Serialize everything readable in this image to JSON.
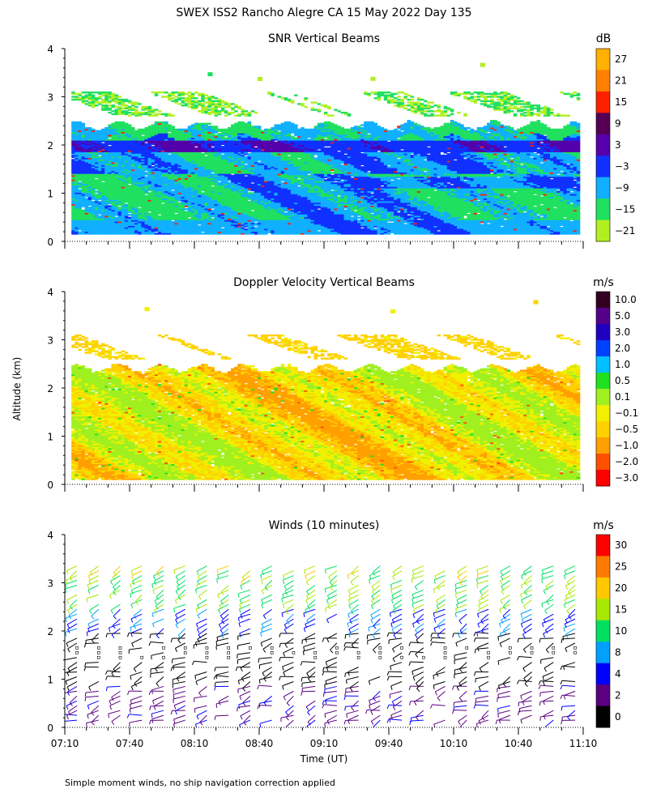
{
  "figure": {
    "title": "SWEX ISS2 Rancho Alegre CA  15 May 2022 Day 135",
    "y_axis_label": "Altitude (km)",
    "x_axis_label": "Time (UT)",
    "footnote": "Simple moment winds, no ship navigation correction applied"
  },
  "chart_data": [
    {
      "type": "heatmap",
      "title": "SNR Vertical Beams",
      "units": "dB",
      "ylim": [
        0,
        4
      ],
      "yticks": [
        "0",
        "1",
        "2",
        "3",
        "4"
      ],
      "x_range": [
        "07:10",
        "11:10"
      ],
      "colorbar_labels": [
        "27",
        "21",
        "15",
        "9",
        "3",
        "−3",
        "−9",
        "−15",
        "−21"
      ],
      "colorbar_colors": [
        "#ffb000",
        "#ff7f00",
        "#ff2000",
        "#550055",
        "#5500aa",
        "#1030ff",
        "#10b0ff",
        "#20e060",
        "#b0f020"
      ],
      "cloud_top_km": 2.4,
      "data_base_km": 0.15
    },
    {
      "type": "heatmap",
      "title": "Doppler Velocity Vertical Beams",
      "units": "m/s",
      "ylim": [
        0,
        4
      ],
      "yticks": [
        "0",
        "1",
        "2",
        "3",
        "4"
      ],
      "x_range": [
        "07:10",
        "11:10"
      ],
      "colorbar_labels": [
        "10.0",
        "5.0",
        "3.0",
        "2.0",
        "1.0",
        "0.5",
        "0.1",
        "−0.1",
        "−0.5",
        "−1.0",
        "−2.0",
        "−3.0"
      ],
      "colorbar_colors": [
        "#330022",
        "#550088",
        "#2000c0",
        "#0040ff",
        "#00c0ff",
        "#20e020",
        "#a0f020",
        "#f0f000",
        "#ffd000",
        "#ffa000",
        "#ff5000",
        "#ff0000"
      ],
      "cloud_top_km": 2.4,
      "data_base_km": 0.1
    },
    {
      "type": "barbs",
      "title": "Winds (10 minutes)",
      "units": "m/s",
      "ylim": [
        0,
        4
      ],
      "yticks": [
        "0",
        "1",
        "2",
        "3",
        "4"
      ],
      "xticks": [
        "07:10",
        "07:40",
        "08:10",
        "08:40",
        "09:10",
        "09:40",
        "10:10",
        "10:40",
        "11:10"
      ],
      "colorbar_labels": [
        "30",
        "25",
        "20",
        "15",
        "10",
        "8",
        "4",
        "2",
        "0"
      ],
      "colorbar_colors": [
        "#ff0000",
        "#ff7a00",
        "#ffc800",
        "#a8e800",
        "#00e060",
        "#00a0ff",
        "#0000ff",
        "#5a0080",
        "#000000"
      ],
      "profile_count": 24
    }
  ]
}
